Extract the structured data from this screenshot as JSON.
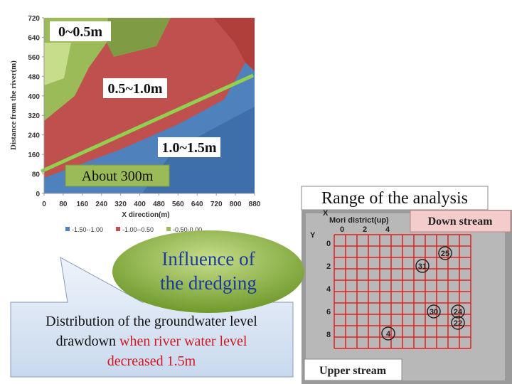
{
  "chart": {
    "y_label": "Distance from the river(m)",
    "x_label": "X direction(m)",
    "xlim": [
      0,
      880
    ],
    "ylim": [
      0,
      720
    ],
    "xticks": [
      0,
      80,
      160,
      240,
      320,
      400,
      480,
      560,
      640,
      720,
      800,
      880
    ],
    "yticks": [
      0,
      80,
      160,
      240,
      320,
      400,
      480,
      560,
      640,
      720
    ],
    "legend": [
      {
        "label": "-1.50--1.00",
        "color": "#4f81bd"
      },
      {
        "label": "-1.00--0.50",
        "color": "#c0504d"
      },
      {
        "label": "-0.50-0.00",
        "color": "#9bbb59"
      }
    ],
    "annotations": {
      "zone1": "0~0.5m",
      "zone2": "0.5~1.0m",
      "zone3": "1.0~1.5m",
      "width": "About 300m"
    }
  },
  "range_title": "Range of the analysis",
  "map": {
    "district": "Mori district(up)",
    "down": "Down stream",
    "up": "Upper stream",
    "axis_x": "X",
    "axis_y": "Y",
    "col_labels": [
      "0",
      "2",
      "4"
    ],
    "row_labels": [
      "0",
      "2",
      "4",
      "6",
      "8"
    ],
    "wells": [
      "25",
      "31",
      "30",
      "24",
      "22",
      "4"
    ]
  },
  "influence": [
    "Influence of",
    "the dredging"
  ],
  "description": {
    "line1": "Distribution of the groundwater level",
    "line2a": "drawdown",
    "line2b": "when river water level",
    "line3": "decreased 1.5m"
  }
}
